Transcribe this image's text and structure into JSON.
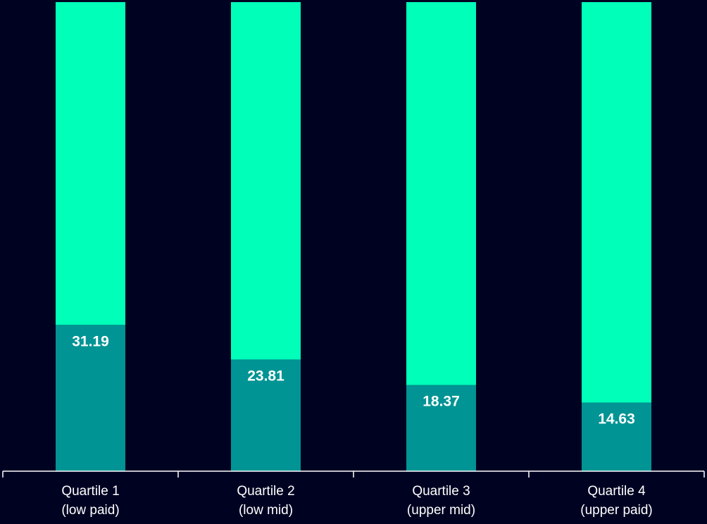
{
  "chart_data": {
    "type": "bar",
    "stacked": true,
    "categories": [
      [
        "Quartile 1",
        "(low paid)"
      ],
      [
        "Quartile 2",
        "(low mid)"
      ],
      [
        "Quartile 3",
        "(upper mid)"
      ],
      [
        "Quartile 4",
        "(upper paid)"
      ]
    ],
    "series": [
      {
        "values": [
          31.19,
          23.81,
          18.37,
          14.63
        ],
        "color": "#009494",
        "labelled": true
      },
      {
        "values": [
          68.81,
          76.19,
          81.63,
          85.37
        ],
        "color": "#00FFB9",
        "labelled": false
      }
    ],
    "value_labels": [
      "31.19",
      "23.81",
      "18.37",
      "14.63"
    ],
    "ylim": [
      0,
      100
    ],
    "grid": false,
    "legend": "none"
  }
}
